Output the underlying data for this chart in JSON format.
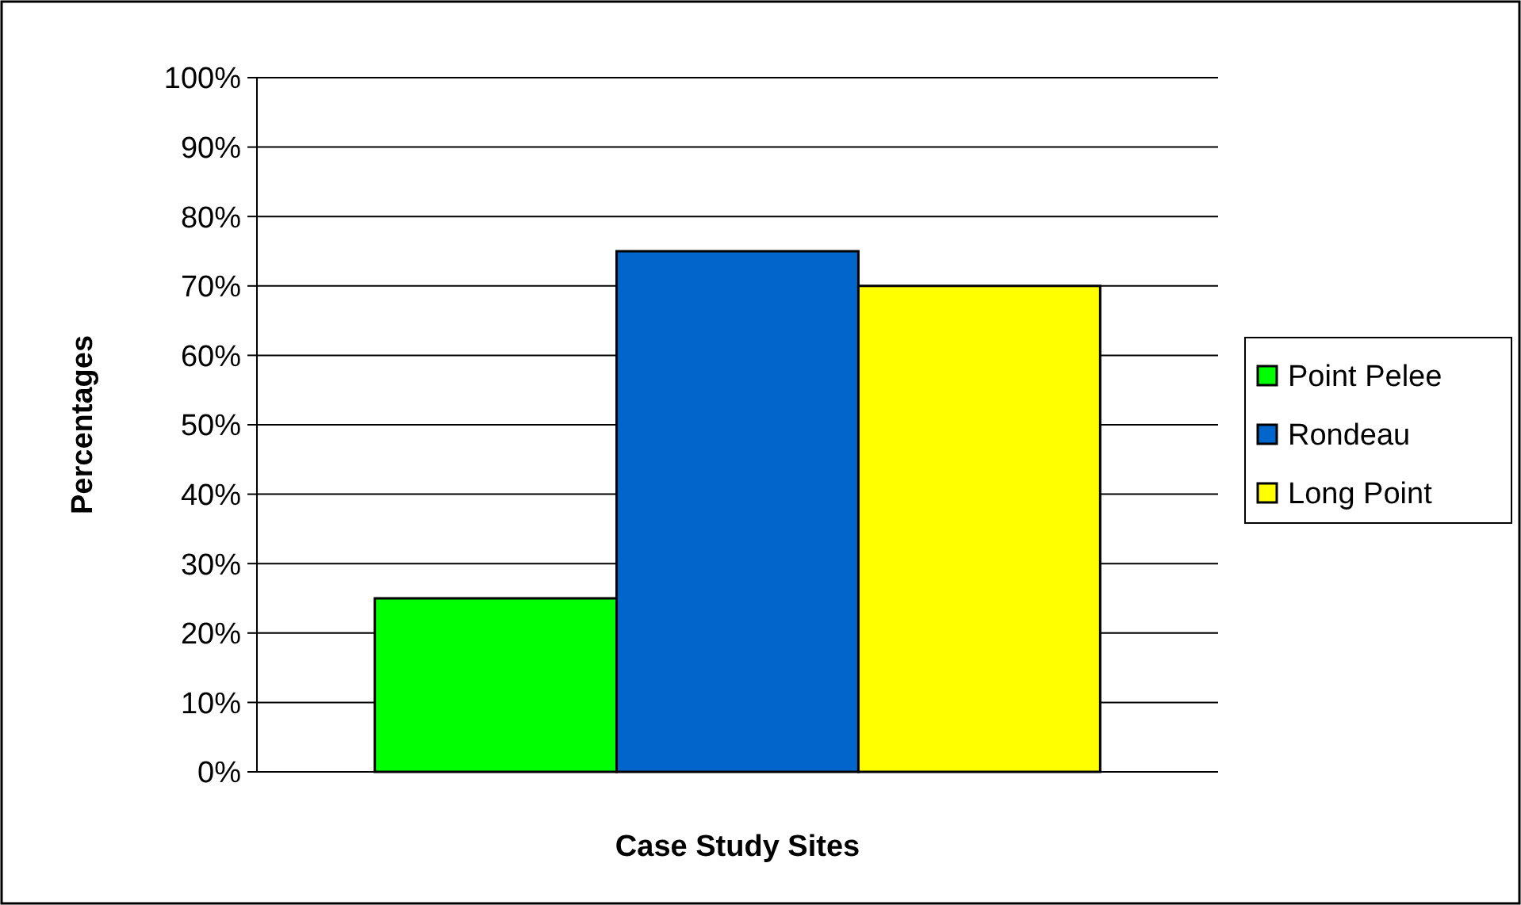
{
  "chart_data": {
    "type": "bar",
    "xlabel": "Case Study Sites",
    "ylabel": "Percentages",
    "categories": [
      null
    ],
    "series": [
      {
        "name": "Point Pelee",
        "color": "#00ff00",
        "values": [
          25
        ]
      },
      {
        "name": "Rondeau",
        "color": "#0066cc",
        "values": [
          75
        ]
      },
      {
        "name": "Long Point",
        "color": "#ffff00",
        "values": [
          70
        ]
      }
    ],
    "ylim": [
      0,
      100
    ],
    "yticks": [
      {
        "value": 0,
        "label": "0%"
      },
      {
        "value": 10,
        "label": "10%"
      },
      {
        "value": 20,
        "label": "20%"
      },
      {
        "value": 30,
        "label": "30%"
      },
      {
        "value": 40,
        "label": "40%"
      },
      {
        "value": 50,
        "label": "50%"
      },
      {
        "value": 60,
        "label": "60%"
      },
      {
        "value": 70,
        "label": "70%"
      },
      {
        "value": 80,
        "label": "80%"
      },
      {
        "value": 90,
        "label": "90%"
      },
      {
        "value": 100,
        "label": "100%"
      }
    ],
    "grid": "y",
    "legend": "right"
  }
}
